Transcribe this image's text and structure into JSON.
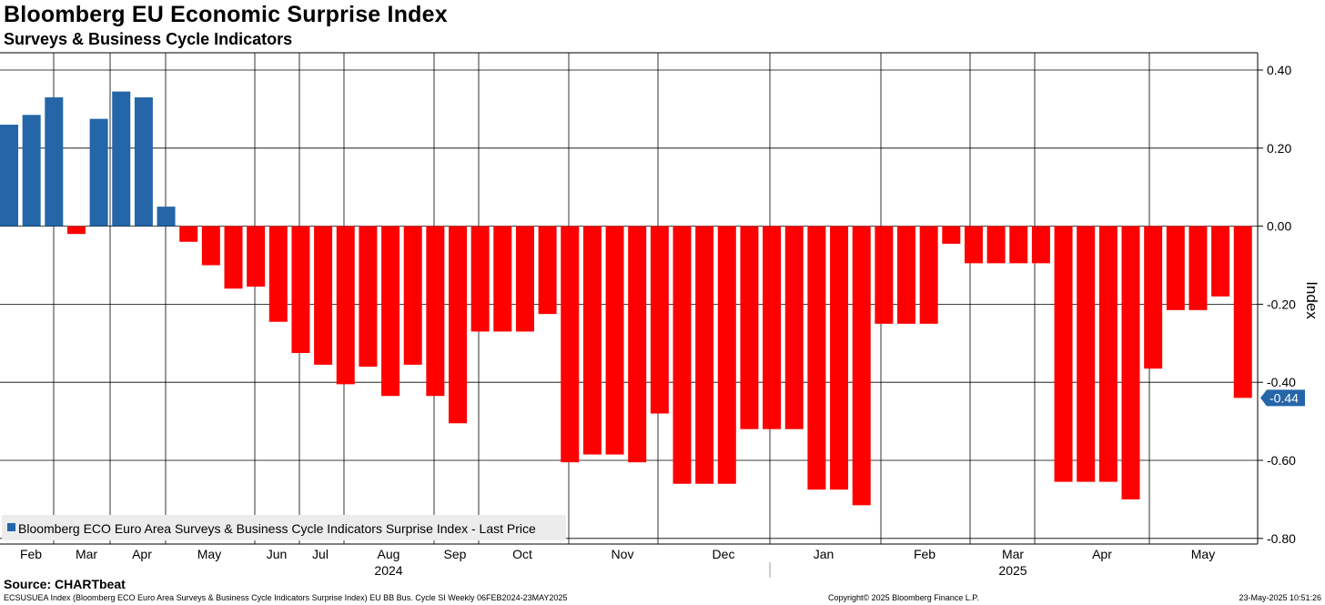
{
  "title": "Bloomberg EU Economic Surprise Index",
  "subtitle": "Surveys & Business Cycle Indicators",
  "source": "Source: CHARTbeat",
  "footer": {
    "left": "ECSUSUEA Index (Bloomberg ECO Euro Area Surveys & Business Cycle Indicators Surprise Index) EU BB Bus. Cycle SI  Weekly 06FEB2024-23MAY2025",
    "center": "Copyright© 2025 Bloomberg Finance L.P.",
    "right": "23-May-2025 10:51:26"
  },
  "chart_data": {
    "type": "bar",
    "ylabel": "Index",
    "ylim": [
      -0.82,
      0.42
    ],
    "yticks": [
      "0.40",
      "0.20",
      "0.00",
      "-0.20",
      "-0.40",
      "-0.60",
      "-0.80"
    ],
    "legend": "Bloomberg ECO Euro Area Surveys & Business Cycle Indicators Surprise Index - Last Price",
    "legend_position": "bottom-left",
    "last_value_label": "-0.44",
    "colors": {
      "positive": "#2466a8",
      "negative": "#ff0000",
      "grid": "#000000",
      "last_label_bg": "#2466a8"
    },
    "month_labels": [
      "Feb",
      "Mar",
      "Apr",
      "May",
      "Jun",
      "Jul",
      "Aug",
      "Sep",
      "Oct",
      "Nov",
      "Dec",
      "Jan",
      "Feb",
      "Mar",
      "Apr",
      "May"
    ],
    "year_labels": [
      "2024",
      "2025"
    ],
    "values": [
      0.26,
      0.285,
      0.33,
      -0.02,
      0.275,
      0.345,
      0.33,
      0.05,
      -0.04,
      -0.1,
      -0.16,
      -0.155,
      -0.245,
      -0.325,
      -0.355,
      -0.405,
      -0.36,
      -0.435,
      -0.355,
      -0.435,
      -0.505,
      -0.27,
      -0.27,
      -0.27,
      -0.225,
      -0.605,
      -0.585,
      -0.585,
      -0.605,
      -0.48,
      -0.66,
      -0.66,
      -0.66,
      -0.52,
      -0.52,
      -0.52,
      -0.675,
      -0.675,
      -0.715,
      -0.25,
      -0.25,
      -0.25,
      -0.045,
      -0.095,
      -0.095,
      -0.095,
      -0.095,
      -0.655,
      -0.655,
      -0.655,
      -0.7,
      -0.365,
      -0.215,
      -0.215,
      -0.18,
      -0.44
    ]
  }
}
